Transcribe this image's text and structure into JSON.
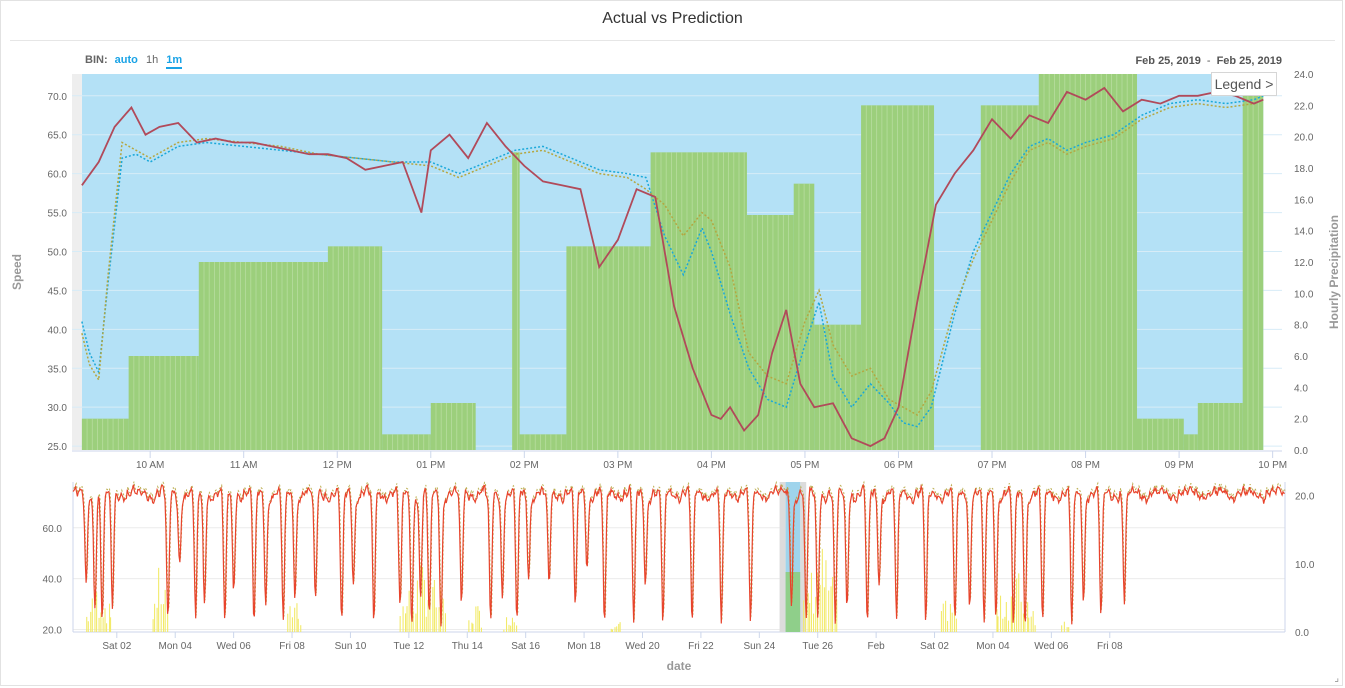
{
  "title": "Actual vs Prediction",
  "bin": {
    "label": "BIN:",
    "options": [
      "auto",
      "1h",
      "1m"
    ],
    "selected": "1m"
  },
  "date_range": {
    "from": "Feb 25, 2019",
    "sep": "-",
    "to": "Feb 25, 2019"
  },
  "legend_button": "Legend >",
  "resize_glyph": "⌟",
  "colors": {
    "background_area": "#b4e1f6",
    "precip": "#9ccf7c",
    "actual": "#b14a5a",
    "pred1": "#1aa8d9",
    "pred2": "#b5a640",
    "nav_actual": "#e8432c",
    "nav_precip": "#f2ea6a",
    "nav_window": "#9fd4ec"
  },
  "chart_data": [
    {
      "type": "line",
      "name": "main",
      "xlabel": "",
      "ylabel": "Speed",
      "y2label": "Hourly Precipitation",
      "ylim": [
        24.5,
        72.8
      ],
      "y2lim": [
        0,
        24
      ],
      "yticks": [
        "25.0",
        "30.0",
        "35.0",
        "40.0",
        "45.0",
        "50.0",
        "55.0",
        "60.0",
        "65.0",
        "70.0"
      ],
      "y2ticks": [
        "0.0",
        "2.0",
        "4.0",
        "6.0",
        "8.0",
        "10.0",
        "12.0",
        "14.0",
        "16.0",
        "18.0",
        "20.0",
        "22.0",
        "24.0"
      ],
      "xlim": [
        9.25,
        22.1
      ],
      "xticks": [
        {
          "x": 10,
          "label": "10 AM"
        },
        {
          "x": 11,
          "label": "11 AM"
        },
        {
          "x": 12,
          "label": "12 PM"
        },
        {
          "x": 13,
          "label": "01 PM"
        },
        {
          "x": 14,
          "label": "02 PM"
        },
        {
          "x": 15,
          "label": "03 PM"
        },
        {
          "x": 16,
          "label": "04 PM"
        },
        {
          "x": 17,
          "label": "05 PM"
        },
        {
          "x": 18,
          "label": "06 PM"
        },
        {
          "x": 19,
          "label": "07 PM"
        },
        {
          "x": 20,
          "label": "08 PM"
        },
        {
          "x": 21,
          "label": "09 PM"
        },
        {
          "x": 22,
          "label": "10 PM"
        }
      ],
      "background_band": [
        9.27,
        21.9
      ],
      "precip_segments": [
        {
          "x0": 9.27,
          "x1": 9.77,
          "value": 2.0
        },
        {
          "x0": 9.77,
          "x1": 10.52,
          "value": 6.0
        },
        {
          "x0": 10.52,
          "x1": 11.9,
          "value": 12.0
        },
        {
          "x0": 11.9,
          "x1": 12.48,
          "value": 13.0
        },
        {
          "x0": 12.48,
          "x1": 13.0,
          "value": 1.0
        },
        {
          "x0": 13.0,
          "x1": 13.48,
          "value": 3.0
        },
        {
          "x0": 13.87,
          "x1": 13.95,
          "value": 19.0
        },
        {
          "x0": 13.95,
          "x1": 14.45,
          "value": 1.0
        },
        {
          "x0": 14.45,
          "x1": 15.35,
          "value": 13.0
        },
        {
          "x0": 15.35,
          "x1": 16.38,
          "value": 19.0
        },
        {
          "x0": 16.38,
          "x1": 16.88,
          "value": 15.0
        },
        {
          "x0": 16.88,
          "x1": 17.1,
          "value": 17.0
        },
        {
          "x0": 17.1,
          "x1": 17.6,
          "value": 8.0
        },
        {
          "x0": 17.6,
          "x1": 18.38,
          "value": 22.0
        },
        {
          "x0": 18.88,
          "x1": 19.5,
          "value": 22.0
        },
        {
          "x0": 19.5,
          "x1": 20.55,
          "value": 24.0
        },
        {
          "x0": 20.55,
          "x1": 21.05,
          "value": 2.0
        },
        {
          "x0": 21.05,
          "x1": 21.2,
          "value": 1.0
        },
        {
          "x0": 21.2,
          "x1": 21.68,
          "value": 3.0
        },
        {
          "x0": 21.68,
          "x1": 21.9,
          "value": 24.0
        }
      ],
      "series": [
        {
          "name": "",
          "style": "solid",
          "x": [
            9.27,
            9.45,
            9.62,
            9.8,
            9.95,
            10.1,
            10.3,
            10.5,
            10.7,
            10.9,
            11.1,
            11.3,
            11.5,
            11.7,
            11.9,
            12.1,
            12.3,
            12.5,
            12.7,
            12.9,
            13.0,
            13.2,
            13.4,
            13.6,
            13.8,
            14.0,
            14.2,
            14.4,
            14.6,
            14.8,
            15.0,
            15.2,
            15.4,
            15.6,
            15.8,
            16.0,
            16.1,
            16.2,
            16.35,
            16.5,
            16.65,
            16.8,
            16.95,
            17.1,
            17.3,
            17.5,
            17.7,
            17.85,
            18.0,
            18.2,
            18.4,
            18.6,
            18.8,
            19.0,
            19.2,
            19.4,
            19.6,
            19.8,
            20.0,
            20.2,
            20.4,
            20.6,
            20.8,
            21.0,
            21.2,
            21.4,
            21.6,
            21.8,
            21.9
          ],
          "y": [
            58.5,
            61.5,
            66.0,
            68.5,
            65.0,
            66.0,
            66.5,
            64.0,
            64.5,
            64.0,
            64.0,
            63.5,
            63.0,
            62.5,
            62.5,
            62.0,
            60.5,
            61.0,
            61.5,
            55.0,
            63.0,
            65.0,
            62.0,
            66.5,
            63.5,
            61.0,
            59.0,
            58.5,
            58.0,
            48.0,
            51.5,
            58.0,
            57.0,
            43.0,
            35.0,
            29.0,
            28.5,
            30.0,
            27.0,
            29.0,
            37.0,
            42.5,
            33.0,
            30.0,
            30.5,
            26.0,
            25.0,
            26.0,
            30.0,
            43.5,
            56.0,
            60.0,
            63.0,
            67.0,
            64.5,
            67.5,
            66.5,
            70.5,
            69.5,
            71.0,
            68.0,
            69.5,
            69.0,
            70.0,
            70.0,
            70.5,
            70.0,
            69.0,
            69.5
          ]
        },
        {
          "name": "",
          "style": "dotted",
          "x": [
            9.27,
            9.35,
            9.45,
            9.55,
            9.7,
            9.85,
            10.0,
            10.3,
            10.6,
            11.0,
            11.4,
            11.8,
            12.2,
            12.6,
            13.0,
            13.3,
            13.6,
            13.9,
            14.2,
            14.5,
            14.8,
            15.1,
            15.3,
            15.5,
            15.7,
            15.9,
            16.0,
            16.2,
            16.4,
            16.6,
            16.8,
            17.0,
            17.15,
            17.3,
            17.5,
            17.7,
            17.9,
            18.05,
            18.2,
            18.35,
            18.6,
            18.8,
            19.0,
            19.2,
            19.4,
            19.6,
            19.8,
            20.0,
            20.3,
            20.6,
            20.9,
            21.2,
            21.5,
            21.8,
            21.9
          ],
          "y": [
            41.0,
            37.0,
            34.5,
            46.0,
            62.0,
            62.5,
            61.5,
            63.5,
            64.0,
            63.5,
            63.0,
            62.5,
            62.0,
            61.5,
            61.5,
            60.0,
            61.5,
            63.0,
            63.5,
            62.0,
            60.5,
            60.0,
            59.5,
            52.0,
            47.0,
            53.0,
            50.0,
            42.0,
            35.0,
            31.0,
            30.0,
            38.0,
            43.5,
            34.0,
            30.0,
            33.0,
            30.5,
            28.0,
            27.5,
            30.0,
            42.0,
            50.0,
            55.0,
            60.0,
            63.5,
            64.5,
            63.0,
            64.0,
            65.0,
            67.5,
            69.0,
            69.5,
            69.0,
            69.5,
            70.0
          ]
        },
        {
          "name": "",
          "style": "dotted",
          "x": [
            9.27,
            9.35,
            9.45,
            9.55,
            9.7,
            9.85,
            10.0,
            10.3,
            10.6,
            11.0,
            11.4,
            11.8,
            12.2,
            12.6,
            13.0,
            13.3,
            13.6,
            13.9,
            14.2,
            14.5,
            14.8,
            15.1,
            15.3,
            15.5,
            15.7,
            15.9,
            16.0,
            16.2,
            16.4,
            16.6,
            16.8,
            17.0,
            17.15,
            17.3,
            17.5,
            17.7,
            17.9,
            18.05,
            18.2,
            18.35,
            18.6,
            18.8,
            19.0,
            19.2,
            19.4,
            19.6,
            19.8,
            20.0,
            20.3,
            20.6,
            20.9,
            21.2,
            21.5,
            21.8,
            21.9
          ],
          "y": [
            39.5,
            35.5,
            33.5,
            47.0,
            64.0,
            63.0,
            62.0,
            64.0,
            64.5,
            64.0,
            63.5,
            62.5,
            62.0,
            61.5,
            61.0,
            59.5,
            61.0,
            62.5,
            63.0,
            61.5,
            60.0,
            59.5,
            58.0,
            56.0,
            52.0,
            55.0,
            54.0,
            48.0,
            37.0,
            34.0,
            33.0,
            41.0,
            45.0,
            38.0,
            34.0,
            35.0,
            31.0,
            30.0,
            29.0,
            32.0,
            43.0,
            49.0,
            54.0,
            59.0,
            63.0,
            64.0,
            62.5,
            63.5,
            64.5,
            67.0,
            68.5,
            69.0,
            68.5,
            69.0,
            69.5
          ]
        }
      ]
    },
    {
      "type": "line",
      "name": "navigator",
      "xlabel": "date",
      "ylim": [
        19.0,
        78.0
      ],
      "y2lim": [
        0,
        22
      ],
      "yticks": [
        "20.0",
        "40.0",
        "60.0"
      ],
      "y2ticks": [
        "0.0",
        "10.0",
        "20.0"
      ],
      "xlim": [
        0,
        41.5
      ],
      "xticks": [
        {
          "x": 1.5,
          "label": "Sat 02"
        },
        {
          "x": 3.5,
          "label": "Mon 04"
        },
        {
          "x": 5.5,
          "label": "Wed 06"
        },
        {
          "x": 7.5,
          "label": "Fri 08"
        },
        {
          "x": 9.5,
          "label": "Sun 10"
        },
        {
          "x": 11.5,
          "label": "Tue 12"
        },
        {
          "x": 13.5,
          "label": "Thu 14"
        },
        {
          "x": 15.5,
          "label": "Sat 16"
        },
        {
          "x": 17.5,
          "label": "Mon 18"
        },
        {
          "x": 19.5,
          "label": "Wed 20"
        },
        {
          "x": 21.5,
          "label": "Fri 22"
        },
        {
          "x": 23.5,
          "label": "Sun 24"
        },
        {
          "x": 25.5,
          "label": "Tue 26"
        },
        {
          "x": 27.5,
          "label": "Feb"
        },
        {
          "x": 29.5,
          "label": "Sat 02"
        },
        {
          "x": 31.5,
          "label": "Mon 04"
        },
        {
          "x": 33.5,
          "label": "Wed 06"
        },
        {
          "x": 35.5,
          "label": "Fri 08"
        }
      ],
      "selection": [
        24.4,
        24.9
      ],
      "precip_clusters": [
        {
          "center": 0.9,
          "width": 0.9,
          "peak": 8
        },
        {
          "center": 3.0,
          "width": 0.6,
          "peak": 11
        },
        {
          "center": 7.6,
          "width": 0.5,
          "peak": 7
        },
        {
          "center": 12.0,
          "width": 1.6,
          "peak": 11
        },
        {
          "center": 13.8,
          "width": 0.5,
          "peak": 5
        },
        {
          "center": 15.0,
          "width": 0.5,
          "peak": 4
        },
        {
          "center": 18.6,
          "width": 0.4,
          "peak": 3
        },
        {
          "center": 25.6,
          "width": 1.2,
          "peak": 14
        },
        {
          "center": 30.0,
          "width": 0.6,
          "peak": 7
        },
        {
          "center": 32.3,
          "width": 1.4,
          "peak": 10
        },
        {
          "center": 34.0,
          "width": 0.3,
          "peak": 3
        }
      ],
      "dips": [
        {
          "x": 0.45,
          "y": 36
        },
        {
          "x": 0.75,
          "y": 30
        },
        {
          "x": 1.0,
          "y": 22
        },
        {
          "x": 1.35,
          "y": 28
        },
        {
          "x": 3.25,
          "y": 22
        },
        {
          "x": 3.65,
          "y": 47
        },
        {
          "x": 4.2,
          "y": 23
        },
        {
          "x": 4.5,
          "y": 30
        },
        {
          "x": 5.2,
          "y": 22
        },
        {
          "x": 5.5,
          "y": 34
        },
        {
          "x": 6.2,
          "y": 21
        },
        {
          "x": 6.6,
          "y": 30
        },
        {
          "x": 7.2,
          "y": 22
        },
        {
          "x": 7.6,
          "y": 32
        },
        {
          "x": 8.3,
          "y": 30
        },
        {
          "x": 9.2,
          "y": 23
        },
        {
          "x": 9.6,
          "y": 38
        },
        {
          "x": 10.3,
          "y": 22
        },
        {
          "x": 11.2,
          "y": 28
        },
        {
          "x": 11.6,
          "y": 23
        },
        {
          "x": 11.9,
          "y": 32
        },
        {
          "x": 12.2,
          "y": 24
        },
        {
          "x": 12.6,
          "y": 22
        },
        {
          "x": 13.3,
          "y": 28
        },
        {
          "x": 14.3,
          "y": 22
        },
        {
          "x": 14.7,
          "y": 34
        },
        {
          "x": 15.2,
          "y": 22
        },
        {
          "x": 15.6,
          "y": 40
        },
        {
          "x": 16.3,
          "y": 36
        },
        {
          "x": 17.2,
          "y": 28
        },
        {
          "x": 17.6,
          "y": 45
        },
        {
          "x": 18.2,
          "y": 22
        },
        {
          "x": 19.2,
          "y": 21
        },
        {
          "x": 19.6,
          "y": 38
        },
        {
          "x": 20.2,
          "y": 22
        },
        {
          "x": 21.2,
          "y": 22
        },
        {
          "x": 22.2,
          "y": 22
        },
        {
          "x": 23.2,
          "y": 22
        },
        {
          "x": 24.6,
          "y": 30
        },
        {
          "x": 25.1,
          "y": 22
        },
        {
          "x": 25.5,
          "y": 25
        },
        {
          "x": 26.1,
          "y": 22
        },
        {
          "x": 26.5,
          "y": 28
        },
        {
          "x": 27.2,
          "y": 22
        },
        {
          "x": 27.6,
          "y": 38
        },
        {
          "x": 28.2,
          "y": 24
        },
        {
          "x": 29.2,
          "y": 22
        },
        {
          "x": 30.2,
          "y": 23
        },
        {
          "x": 30.7,
          "y": 30
        },
        {
          "x": 31.2,
          "y": 22
        },
        {
          "x": 31.6,
          "y": 26
        },
        {
          "x": 32.2,
          "y": 21
        },
        {
          "x": 32.6,
          "y": 22
        },
        {
          "x": 33.2,
          "y": 23
        },
        {
          "x": 34.2,
          "y": 22
        },
        {
          "x": 34.6,
          "y": 32
        },
        {
          "x": 35.2,
          "y": 24
        },
        {
          "x": 36.0,
          "y": 30
        }
      ],
      "series": [
        {
          "name": "",
          "style": "solid",
          "baseline": 73
        }
      ]
    }
  ]
}
